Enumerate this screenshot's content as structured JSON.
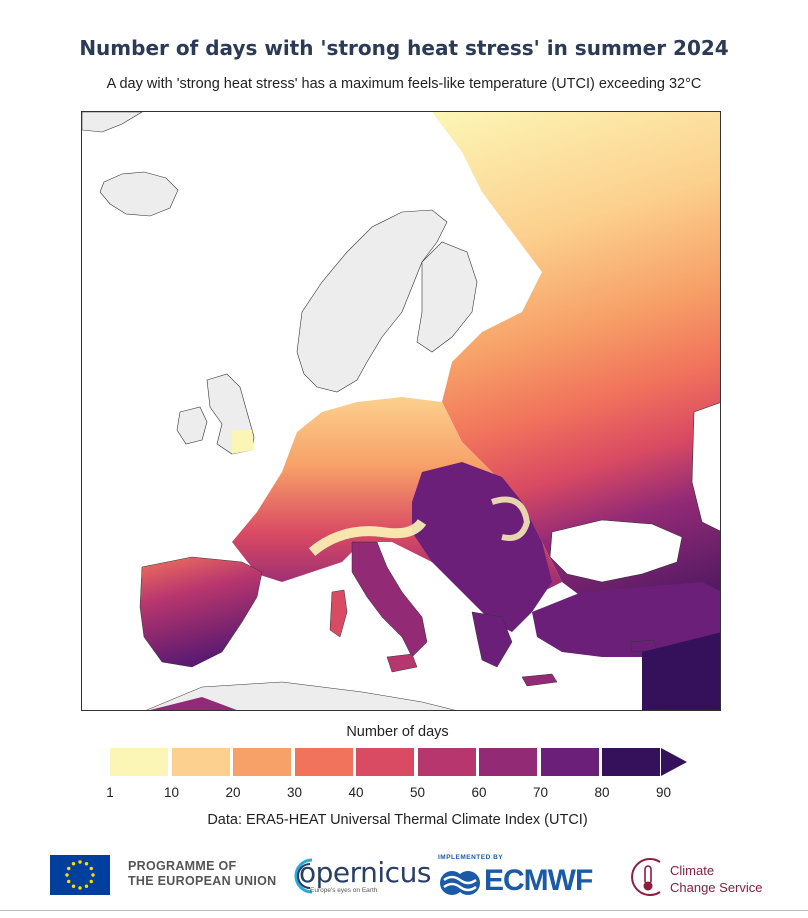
{
  "header": {
    "title": "Number of days with 'strong heat stress' in summer 2024",
    "subtitle": "A day with 'strong heat stress' has a maximum feels-like temperature (UTCI) exceeding 32°C"
  },
  "map": {
    "region": "Europe",
    "land_color": "#ededed",
    "sea_color": "#ffffff",
    "no_data_color": "#ffffff"
  },
  "legend": {
    "title": "Number of days",
    "ticks": [
      "1",
      "10",
      "20",
      "30",
      "40",
      "50",
      "60",
      "70",
      "80",
      "90"
    ],
    "bins": [
      {
        "from": 1,
        "to": 10,
        "color": "#fcf6b6"
      },
      {
        "from": 10,
        "to": 20,
        "color": "#fcd08e"
      },
      {
        "from": 20,
        "to": 30,
        "color": "#f7a168"
      },
      {
        "from": 30,
        "to": 40,
        "color": "#f1735c"
      },
      {
        "from": 40,
        "to": 50,
        "color": "#d94a63"
      },
      {
        "from": 50,
        "to": 60,
        "color": "#b8366e"
      },
      {
        "from": 60,
        "to": 70,
        "color": "#932a76"
      },
      {
        "from": 70,
        "to": 80,
        "color": "#6c1f78"
      },
      {
        "from": 80,
        "to": 90,
        "color": "#34115a"
      }
    ],
    "overflow_arrow_color": "#34115a"
  },
  "source": "Data: ERA5-HEAT Universal Thermal Climate Index (UTCI)",
  "logos": {
    "eu_line1": "PROGRAMME OF",
    "eu_line2": "THE EUROPEAN UNION",
    "copernicus": "opernicus",
    "copernicus_tagline": "Europe's eyes on Earth",
    "ecmwf_implemented": "IMPLEMENTED BY",
    "ecmwf": "ECMWF",
    "c3s_line1": "Climate",
    "c3s_line2": "Change Service"
  }
}
